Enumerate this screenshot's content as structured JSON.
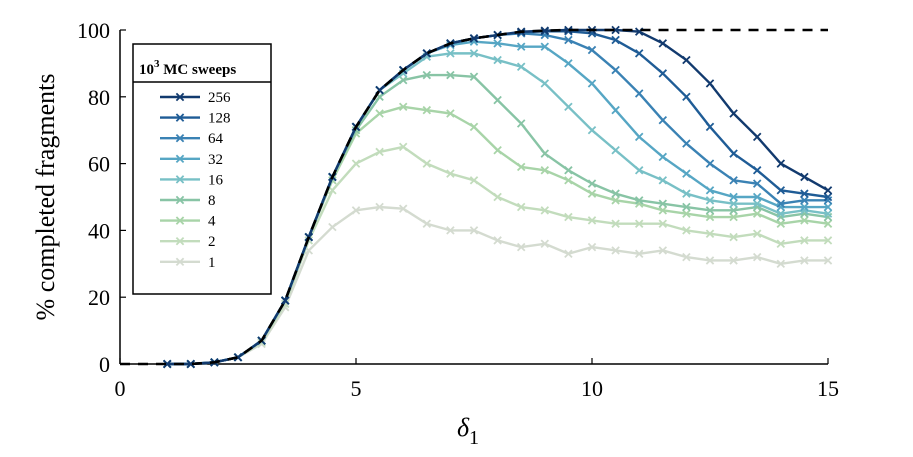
{
  "chart_data": {
    "type": "line",
    "xlabel_symbol": "δ",
    "xlabel_subscript": "1",
    "ylabel": "% completed fragments",
    "xlim": [
      0,
      15
    ],
    "ylim": [
      0,
      100
    ],
    "xticks": [
      0,
      5,
      10,
      15
    ],
    "yticks": [
      0,
      20,
      40,
      60,
      80,
      100
    ],
    "grid": false,
    "legend": {
      "placement": "top-left",
      "title_base": "10",
      "title_exp": "3",
      "title_rest": " MC sweeps"
    },
    "marker": "x",
    "x": [
      1,
      1.5,
      2,
      2.5,
      3,
      3.5,
      4,
      4.5,
      5,
      5.5,
      6,
      6.5,
      7,
      7.5,
      8,
      8.5,
      9,
      9.5,
      10,
      10.5,
      11,
      11.5,
      12,
      12.5,
      13,
      13.5,
      14,
      14.5,
      15
    ],
    "series": [
      {
        "name": "256",
        "color": "#123a6e",
        "values": [
          0,
          0,
          0.5,
          2,
          7,
          19,
          38,
          56,
          71,
          82,
          88,
          93,
          96,
          97.5,
          98.5,
          99.5,
          99.8,
          100,
          100,
          100,
          99.5,
          96,
          91,
          84,
          75,
          68,
          60,
          56,
          52
        ]
      },
      {
        "name": "128",
        "color": "#1f5c96",
        "values": [
          0,
          0,
          0.5,
          2,
          7,
          19,
          38,
          56,
          71,
          82,
          88,
          93,
          96,
          97.5,
          98.5,
          99.3,
          99.6,
          99.6,
          99,
          97,
          93,
          87,
          80,
          71,
          63,
          58,
          52,
          51,
          50
        ]
      },
      {
        "name": "64",
        "color": "#3a82b4",
        "values": [
          0,
          0,
          0.5,
          2,
          7,
          19,
          38,
          56,
          71,
          82,
          88,
          93,
          96,
          97.5,
          98.5,
          99,
          98.5,
          97,
          94,
          88,
          81,
          73,
          66,
          60,
          55,
          54,
          48,
          49,
          49
        ]
      },
      {
        "name": "32",
        "color": "#56a6c4",
        "values": [
          0,
          0,
          0.5,
          2,
          7,
          19,
          38,
          56,
          71,
          82,
          88,
          93,
          95.5,
          96.5,
          96,
          95,
          95,
          90,
          84,
          76,
          68,
          62,
          57,
          52,
          50,
          50,
          47,
          47,
          47
        ]
      },
      {
        "name": "16",
        "color": "#78c0c6",
        "values": [
          0,
          0,
          0.5,
          2,
          7,
          19,
          38,
          56,
          71,
          82,
          87,
          92,
          93,
          93,
          91,
          89,
          84,
          77,
          70,
          64,
          58,
          55,
          51,
          49,
          48,
          48,
          45,
          46,
          45
        ]
      },
      {
        "name": "8",
        "color": "#88c4a5",
        "values": [
          0,
          0,
          0.5,
          2,
          7,
          19,
          38,
          56,
          70,
          80,
          85,
          86.5,
          86.5,
          86,
          79,
          72,
          63,
          58,
          54,
          51,
          49,
          48,
          47,
          46,
          46,
          47,
          44,
          45,
          44
        ]
      },
      {
        "name": "4",
        "color": "#a8d4a8",
        "values": [
          0,
          0,
          0.5,
          2,
          7,
          19,
          38,
          55,
          69,
          75,
          77,
          76,
          75,
          71,
          64,
          59,
          58,
          55,
          51,
          49,
          48,
          46,
          45,
          44,
          44,
          45,
          42,
          43,
          42
        ]
      },
      {
        "name": "2",
        "color": "#c2dcbc",
        "values": [
          0,
          0,
          0.5,
          2,
          6.5,
          18,
          37,
          52,
          60,
          63.5,
          65,
          60,
          57,
          55,
          50,
          47,
          46,
          44,
          43,
          42,
          42,
          42,
          40,
          39,
          38,
          39,
          36,
          37,
          37
        ]
      },
      {
        "name": "1",
        "color": "#d4dbd0",
        "values": [
          0,
          0,
          0.5,
          2,
          6,
          17,
          34,
          41,
          46,
          47,
          46.5,
          42,
          40,
          40,
          37,
          35,
          36,
          33,
          35,
          34,
          33,
          34,
          32,
          31,
          31,
          32,
          30,
          31,
          31
        ]
      }
    ],
    "reference": {
      "style": "dashed",
      "color": "#000000",
      "description_hidden": true
    }
  }
}
